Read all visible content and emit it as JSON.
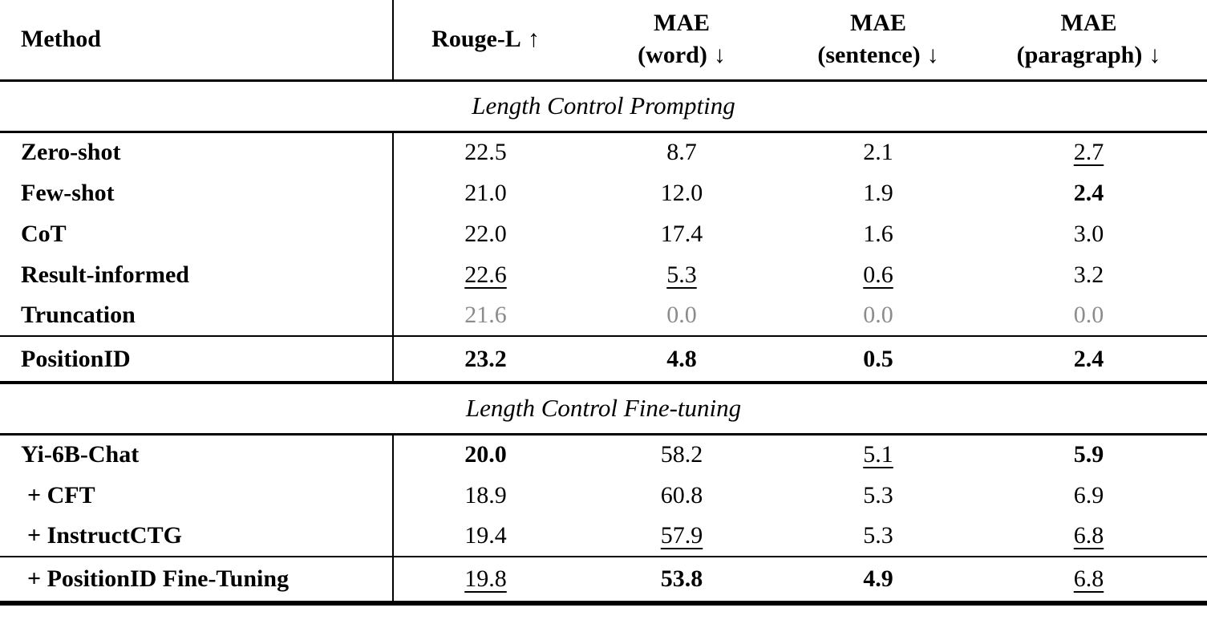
{
  "page": {
    "background_color": "#ffffff",
    "text_color": "#000000",
    "muted_value_color": "#8c8c8c"
  },
  "table": {
    "header": {
      "method_label": "Method",
      "columns": [
        {
          "title": "Rouge-L",
          "sub": "",
          "arrow": "↑"
        },
        {
          "title": "MAE",
          "sub": "(word)",
          "arrow": "↓"
        },
        {
          "title": "MAE",
          "sub": "(sentence)",
          "arrow": "↓"
        },
        {
          "title": "MAE",
          "sub": "(paragraph)",
          "arrow": "↓"
        }
      ]
    },
    "sections": [
      {
        "title": "Length Control Prompting",
        "rows": [
          {
            "method": "Zero-shot",
            "values": [
              {
                "v": "22.5",
                "s": "normal"
              },
              {
                "v": "8.7",
                "s": "normal"
              },
              {
                "v": "2.1",
                "s": "normal"
              },
              {
                "v": "2.7",
                "s": "underline"
              }
            ]
          },
          {
            "method": "Few-shot",
            "values": [
              {
                "v": "21.0",
                "s": "normal"
              },
              {
                "v": "12.0",
                "s": "normal"
              },
              {
                "v": "1.9",
                "s": "normal"
              },
              {
                "v": "2.4",
                "s": "bold"
              }
            ]
          },
          {
            "method": "CoT",
            "values": [
              {
                "v": "22.0",
                "s": "normal"
              },
              {
                "v": "17.4",
                "s": "normal"
              },
              {
                "v": "1.6",
                "s": "normal"
              },
              {
                "v": "3.0",
                "s": "normal"
              }
            ]
          },
          {
            "method": "Result-informed",
            "values": [
              {
                "v": "22.6",
                "s": "underline"
              },
              {
                "v": "5.3",
                "s": "underline"
              },
              {
                "v": "0.6",
                "s": "underline"
              },
              {
                "v": "3.2",
                "s": "normal"
              }
            ]
          },
          {
            "method": "Truncation",
            "values": [
              {
                "v": "21.6",
                "s": "gray"
              },
              {
                "v": "0.0",
                "s": "gray"
              },
              {
                "v": "0.0",
                "s": "gray"
              },
              {
                "v": "0.0",
                "s": "gray"
              }
            ]
          }
        ],
        "highlight": {
          "method": "PositionID",
          "values": [
            {
              "v": "23.2",
              "s": "bold"
            },
            {
              "v": "4.8",
              "s": "bold"
            },
            {
              "v": "0.5",
              "s": "bold"
            },
            {
              "v": "2.4",
              "s": "bold"
            }
          ]
        }
      },
      {
        "title": "Length Control Fine-tuning",
        "rows": [
          {
            "method": "Yi-6B-Chat",
            "values": [
              {
                "v": "20.0",
                "s": "bold"
              },
              {
                "v": "58.2",
                "s": "normal"
              },
              {
                "v": "5.1",
                "s": "underline"
              },
              {
                "v": "5.9",
                "s": "bold"
              }
            ]
          },
          {
            "method": "+ CFT",
            "values": [
              {
                "v": "18.9",
                "s": "normal"
              },
              {
                "v": "60.8",
                "s": "normal"
              },
              {
                "v": "5.3",
                "s": "normal"
              },
              {
                "v": "6.9",
                "s": "normal"
              }
            ]
          },
          {
            "method": "+ InstructCTG",
            "values": [
              {
                "v": "19.4",
                "s": "normal"
              },
              {
                "v": "57.9",
                "s": "underline"
              },
              {
                "v": "5.3",
                "s": "normal"
              },
              {
                "v": "6.8",
                "s": "underline"
              }
            ]
          }
        ],
        "highlight": {
          "method": "+ PositionID Fine-Tuning",
          "values": [
            {
              "v": "19.8",
              "s": "underline"
            },
            {
              "v": "53.8",
              "s": "bold"
            },
            {
              "v": "4.9",
              "s": "bold"
            },
            {
              "v": "6.8",
              "s": "underline"
            }
          ]
        }
      }
    ]
  }
}
